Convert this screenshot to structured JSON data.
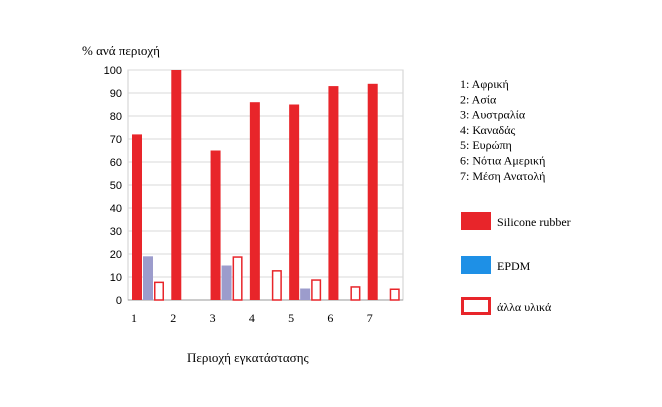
{
  "chart_data": {
    "type": "bar",
    "ylabel": "% ανά περιοχή",
    "xlabel": "Περιοχή εγκατάστασης",
    "categories": [
      "1",
      "2",
      "3",
      "4",
      "5",
      "6",
      "7"
    ],
    "ylim": [
      0,
      100
    ],
    "yticks": [
      0,
      10,
      20,
      30,
      40,
      50,
      60,
      70,
      80,
      90,
      100
    ],
    "grid": "horizontal",
    "legend_placement": "right",
    "series": [
      {
        "name": "Silicone rubber",
        "color": "#e8252a",
        "style": "filled",
        "values": [
          72,
          100,
          65,
          86,
          85,
          93,
          94
        ]
      },
      {
        "name": "EPDM",
        "color": "#9c9ccc",
        "legend_color": "#1e90e6",
        "style": "filled",
        "values": [
          19,
          0,
          15,
          0,
          5,
          0,
          0
        ]
      },
      {
        "name": "άλλα υλικά",
        "color": "#e8252a",
        "style": "outline",
        "values": [
          8,
          0,
          19,
          13,
          9,
          6,
          5
        ]
      }
    ],
    "regions": [
      "1: Αφρική",
      "2: Ασία",
      "3: Αυστραλία",
      "4: Καναδάς",
      "5: Ευρώπη",
      "6: Νότια Αμερική",
      "7: Μέση Ανατολή"
    ]
  }
}
